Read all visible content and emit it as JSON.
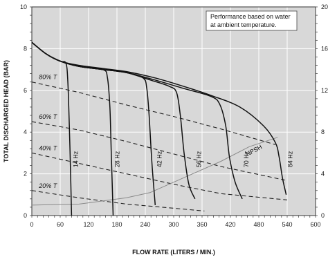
{
  "chart_data": {
    "type": "line",
    "xlabel": "FLOW RATE (LITERS / MIN.)",
    "ylabel": "TOTAL DISCHARGED HEAD (BAR)",
    "xlim": [
      0,
      600
    ],
    "ylim": [
      0,
      10
    ],
    "y2lim": [
      0,
      20
    ],
    "x_ticks": [
      0,
      60,
      120,
      180,
      240,
      300,
      360,
      420,
      480,
      540,
      600
    ],
    "y_ticks": [
      0,
      2,
      4,
      6,
      8,
      10
    ],
    "y2_ticks": [
      "0",
      "4",
      "8",
      "12",
      "16",
      "20"
    ],
    "grid": true,
    "annotation": "Performance based on water at ambient temperature.",
    "speed_curves": [
      {
        "label": "14 Hz",
        "points": [
          [
            0,
            8.3
          ],
          [
            30,
            7.75
          ],
          [
            60,
            7.4
          ],
          [
            72,
            7.3
          ],
          [
            76,
            6.5
          ],
          [
            79,
            4.5
          ],
          [
            82,
            2
          ],
          [
            84,
            0
          ]
        ]
      },
      {
        "label": "28 Hz",
        "points": [
          [
            0,
            8.3
          ],
          [
            30,
            7.75
          ],
          [
            60,
            7.4
          ],
          [
            100,
            7.15
          ],
          [
            150,
            7.0
          ],
          [
            160,
            6.6
          ],
          [
            165,
            5.2
          ],
          [
            168,
            3
          ],
          [
            172,
            0
          ]
        ]
      },
      {
        "label": "42 Hz",
        "points": [
          [
            0,
            8.3
          ],
          [
            30,
            7.75
          ],
          [
            60,
            7.4
          ],
          [
            100,
            7.15
          ],
          [
            150,
            7.0
          ],
          [
            200,
            6.85
          ],
          [
            235,
            6.6
          ],
          [
            243,
            6.1
          ],
          [
            248,
            4.8
          ],
          [
            254,
            2.5
          ],
          [
            261,
            0.5
          ]
        ]
      },
      {
        "label": "56 Hz",
        "points": [
          [
            0,
            8.3
          ],
          [
            30,
            7.75
          ],
          [
            60,
            7.4
          ],
          [
            100,
            7.15
          ],
          [
            150,
            7.0
          ],
          [
            200,
            6.85
          ],
          [
            250,
            6.5
          ],
          [
            290,
            6.2
          ],
          [
            306,
            5.9
          ],
          [
            314,
            4.8
          ],
          [
            322,
            3.0
          ],
          [
            332,
            1.5
          ],
          [
            345,
            0.8
          ]
        ]
      },
      {
        "label": "70 Hz",
        "points": [
          [
            0,
            8.3
          ],
          [
            30,
            7.75
          ],
          [
            60,
            7.4
          ],
          [
            100,
            7.15
          ],
          [
            150,
            7.0
          ],
          [
            200,
            6.85
          ],
          [
            260,
            6.5
          ],
          [
            320,
            6.1
          ],
          [
            380,
            5.7
          ],
          [
            398,
            5.3
          ],
          [
            410,
            4.3
          ],
          [
            418,
            2.8
          ],
          [
            430,
            1.6
          ],
          [
            445,
            0.8
          ]
        ]
      },
      {
        "label": "84 Hz",
        "points": [
          [
            0,
            8.3
          ],
          [
            30,
            7.75
          ],
          [
            60,
            7.4
          ],
          [
            100,
            7.2
          ],
          [
            150,
            7.05
          ],
          [
            200,
            6.9
          ],
          [
            260,
            6.6
          ],
          [
            320,
            6.2
          ],
          [
            380,
            5.75
          ],
          [
            440,
            5.2
          ],
          [
            490,
            4.3
          ],
          [
            515,
            3.5
          ],
          [
            523,
            2.8
          ],
          [
            530,
            1.8
          ],
          [
            538,
            1.0
          ]
        ]
      }
    ],
    "temperature_curves": [
      {
        "label": "80% T",
        "points": [
          [
            0,
            6.4
          ],
          [
            100,
            5.9
          ],
          [
            200,
            5.3
          ],
          [
            300,
            4.75
          ],
          [
            400,
            4.15
          ],
          [
            515,
            3.4
          ]
        ]
      },
      {
        "label": "60% T",
        "points": [
          [
            0,
            4.5
          ],
          [
            100,
            4.1
          ],
          [
            200,
            3.55
          ],
          [
            300,
            2.95
          ],
          [
            400,
            2.35
          ],
          [
            535,
            1.7
          ]
        ]
      },
      {
        "label": "40% T",
        "points": [
          [
            0,
            3.0
          ],
          [
            100,
            2.5
          ],
          [
            200,
            2.0
          ],
          [
            300,
            1.5
          ],
          [
            400,
            1.05
          ],
          [
            540,
            0.75
          ]
        ]
      },
      {
        "label": "20% T",
        "points": [
          [
            0,
            1.2
          ],
          [
            100,
            0.85
          ],
          [
            200,
            0.55
          ],
          [
            300,
            0.35
          ],
          [
            365,
            0.22
          ]
        ]
      }
    ],
    "npsh_curve": {
      "label": "NPSH",
      "points": [
        [
          0,
          0.5
        ],
        [
          100,
          0.55
        ],
        [
          200,
          0.85
        ],
        [
          250,
          1.1
        ],
        [
          300,
          1.6
        ],
        [
          400,
          2.6
        ],
        [
          460,
          3.3
        ],
        [
          520,
          3.75
        ]
      ]
    }
  }
}
